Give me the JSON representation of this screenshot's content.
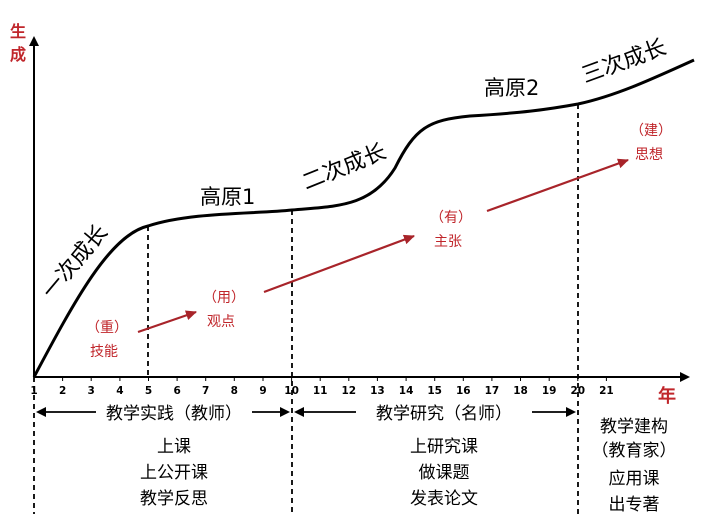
{
  "axes": {
    "y_label": "生成",
    "x_label": "年",
    "ticks": [
      "1",
      "2",
      "3",
      "4",
      "5",
      "6",
      "7",
      "8",
      "9",
      "10",
      "11",
      "12",
      "13",
      "14",
      "15",
      "16",
      "17",
      "18",
      "19",
      "20",
      "21"
    ]
  },
  "curve_labels": {
    "growth1": "一次成长",
    "plateau1": "高原1",
    "growth2": "二次成长",
    "plateau2": "高原2",
    "growth3": "三次成长"
  },
  "milestones": [
    {
      "tag": "（重）",
      "text": "技能"
    },
    {
      "tag": "（用）",
      "text": "观点"
    },
    {
      "tag": "（有）",
      "text": "主张"
    },
    {
      "tag": "（建）",
      "text": "思想"
    }
  ],
  "stages": [
    {
      "title": "教学实践（教师）",
      "items": [
        "上课",
        "上公开课",
        "教学反思"
      ]
    },
    {
      "title": "教学研究（名师）",
      "items": [
        "上研究课",
        "做课题",
        "发表论文"
      ]
    },
    {
      "title_lines": [
        "教学建构",
        "（教育家）"
      ],
      "items": [
        "应用课",
        "出专著"
      ]
    }
  ],
  "colors": {
    "accent": "#c0262b",
    "ink": "#000000"
  }
}
